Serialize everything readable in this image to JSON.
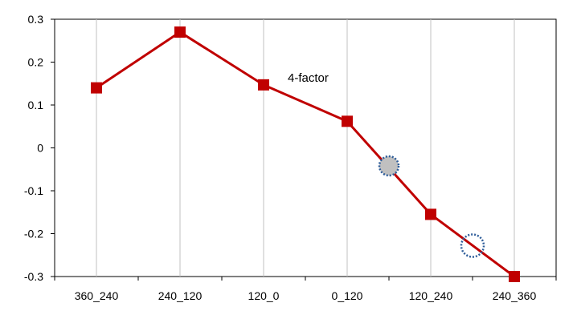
{
  "chart_data": {
    "type": "line",
    "categories": [
      "360_240",
      "240_120",
      "120_0",
      "0_120",
      "120_240",
      "240_360"
    ],
    "series": [
      {
        "values": [
          0.14,
          0.27,
          0.147,
          0.062,
          -0.155,
          -0.3
        ],
        "color": "#c00000"
      }
    ],
    "ylim": [
      -0.3,
      0.3
    ],
    "yticks": [
      "0.3",
      "0.2",
      "0.1",
      "0",
      "-0.1",
      "-0.2",
      "-0.3"
    ],
    "ytick_values": [
      0.3,
      0.2,
      0.1,
      0,
      -0.1,
      -0.2,
      -0.3
    ],
    "vertical_gridlines": true,
    "annotation": "4-factor",
    "circle_markers": [
      {
        "x_position": 3.5,
        "y": -0.042,
        "style": "filled",
        "fill": "#c0c0c0",
        "stroke": "#2e5d9a"
      },
      {
        "x_position": 4.5,
        "y": -0.228,
        "style": "hollow",
        "stroke": "#2e5d9a"
      }
    ],
    "plot_border_color": "#000000",
    "gridline_color": "#c0c0c0"
  }
}
